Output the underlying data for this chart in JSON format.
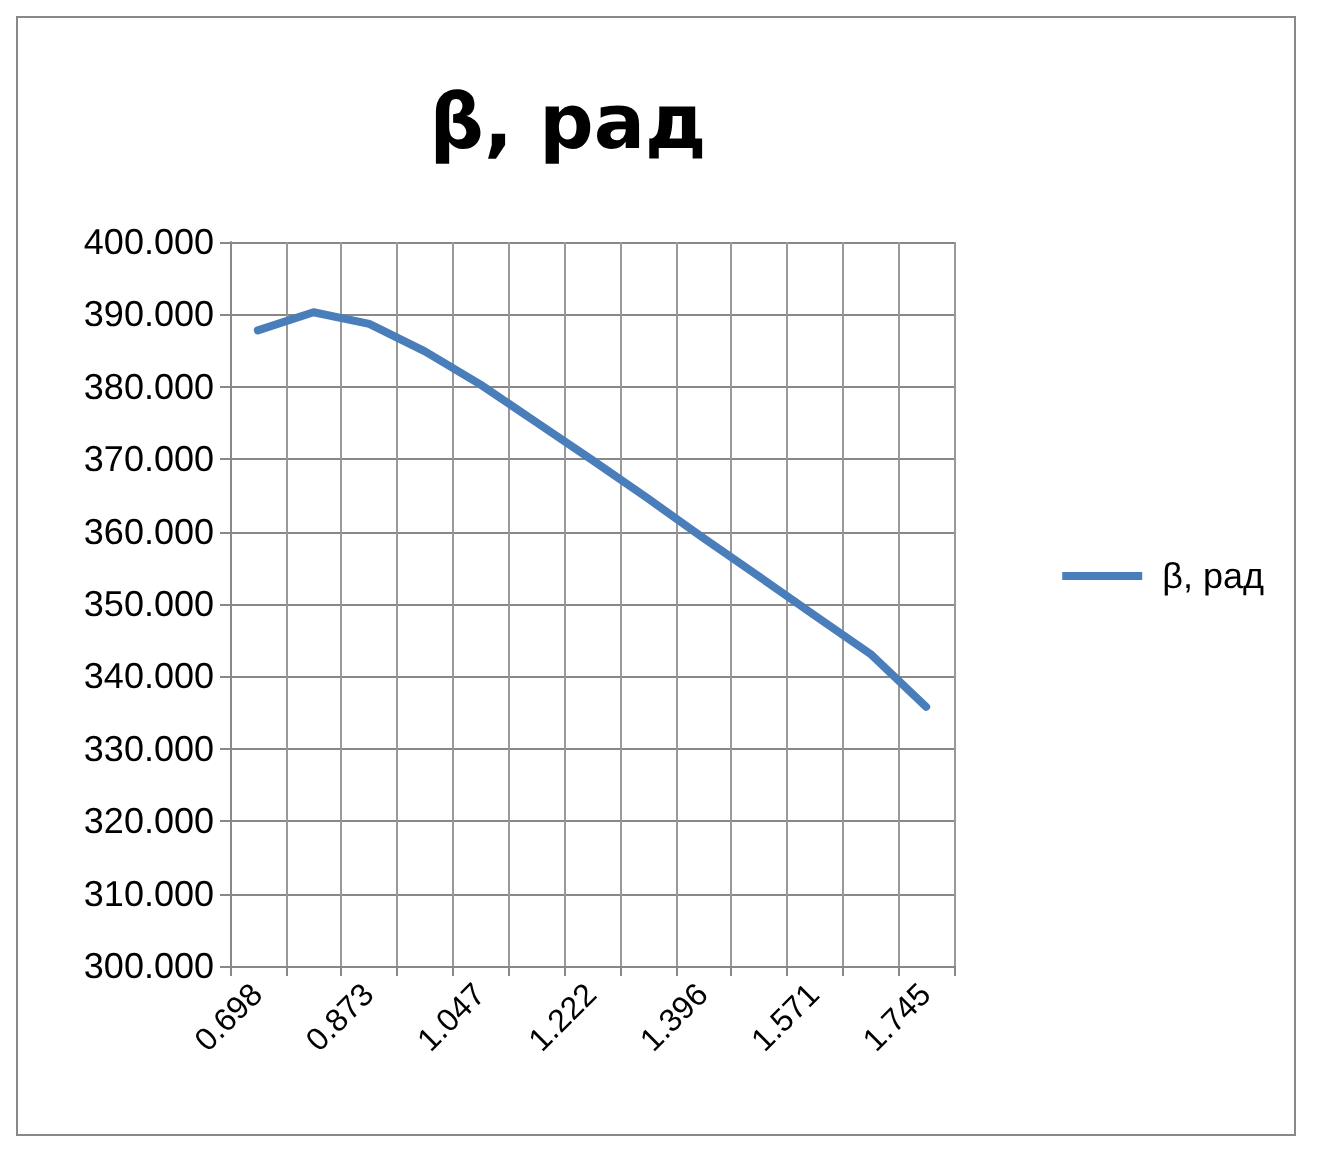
{
  "chart_data": {
    "type": "line",
    "title": "β, рад",
    "categories": [
      "0.698",
      null,
      "0.873",
      null,
      "1.047",
      null,
      "1.222",
      null,
      "1.396",
      null,
      "1.571",
      null,
      "1.745"
    ],
    "series": [
      {
        "name": "β, рад",
        "color": "#4a7ebb",
        "values": [
          387.8,
          390.3,
          388.7,
          384.9,
          380.3,
          375.1,
          369.9,
          364.6,
          359.1,
          353.8,
          348.4,
          343.1,
          335.8
        ]
      }
    ],
    "ylim": [
      300,
      400
    ],
    "yticks": [
      {
        "value": 300,
        "label": "300.000"
      },
      {
        "value": 310,
        "label": "310.000"
      },
      {
        "value": 320,
        "label": "320.000"
      },
      {
        "value": 330,
        "label": "330.000"
      },
      {
        "value": 340,
        "label": "340.000"
      },
      {
        "value": 350,
        "label": "350.000"
      },
      {
        "value": 360,
        "label": "360.000"
      },
      {
        "value": 370,
        "label": "370.000"
      },
      {
        "value": 380,
        "label": "380.000"
      },
      {
        "value": 390,
        "label": "390.000"
      },
      {
        "value": 400,
        "label": "400.000"
      }
    ],
    "grid": true,
    "legend": "right",
    "marker": "none",
    "line_style": "solid"
  }
}
